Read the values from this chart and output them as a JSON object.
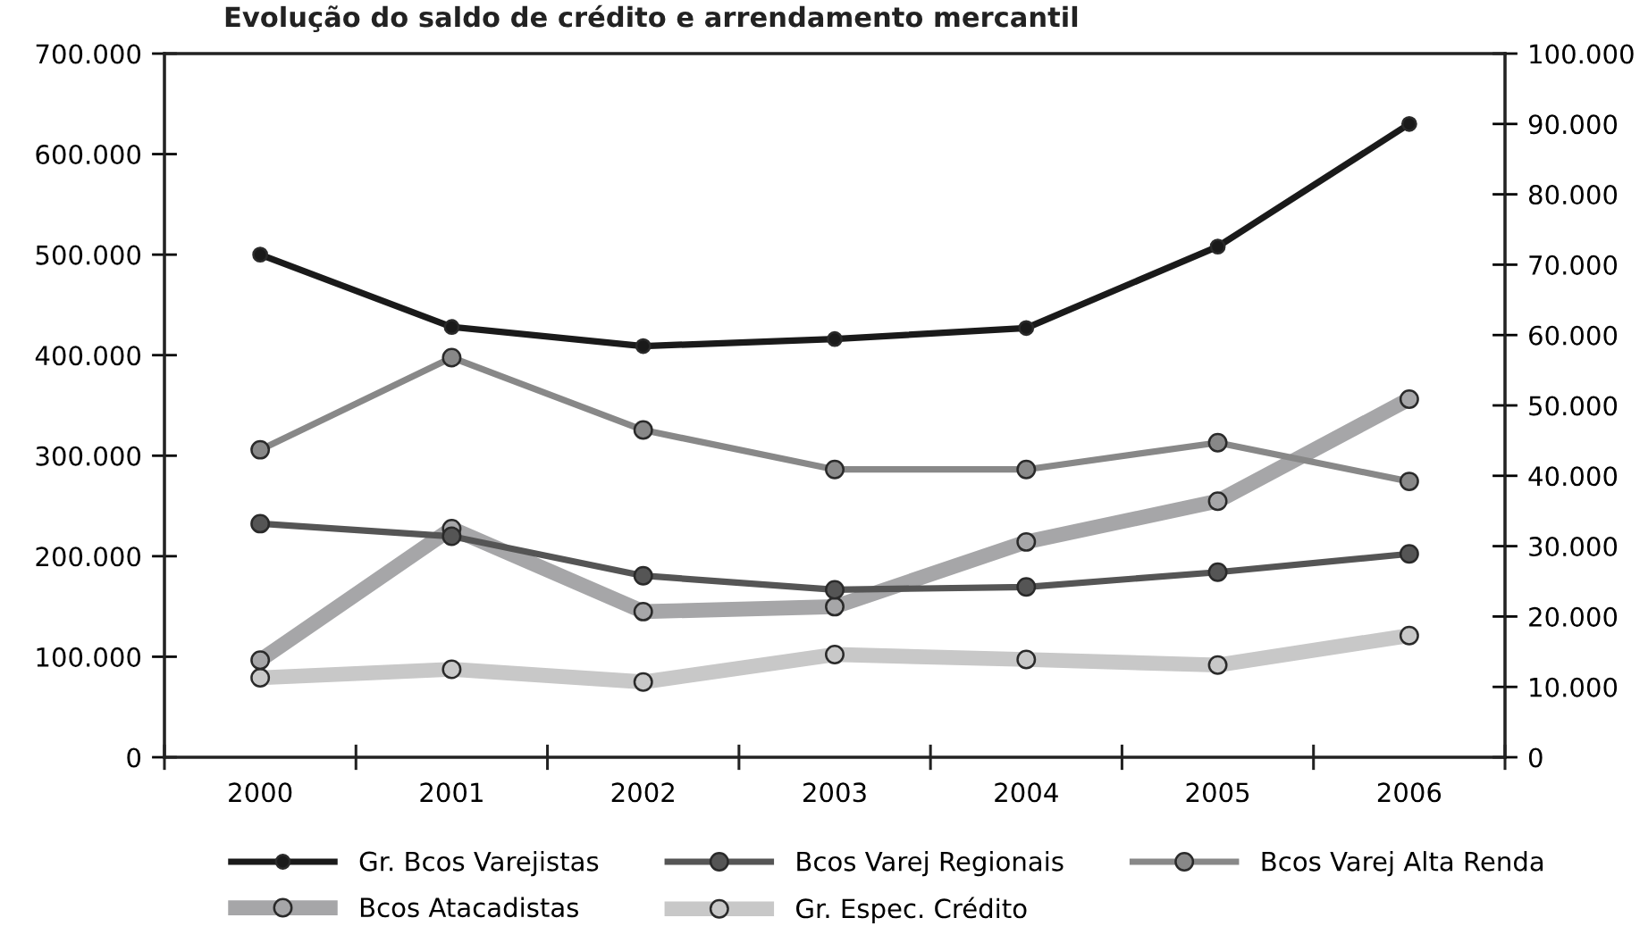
{
  "chart_data": {
    "type": "line",
    "title": "Evolução do saldo de crédito e arrendamento mercantil",
    "categories": [
      "2000",
      "2001",
      "2002",
      "2003",
      "2004",
      "2005",
      "2006"
    ],
    "series": [
      {
        "name": "Gr. Bcos Varejistas",
        "color": "#1a1a1a",
        "values": [
          500000,
          428000,
          409000,
          416000,
          427000,
          508000,
          630000
        ]
      },
      {
        "name": "Bcos Varej Regionais",
        "color": "#555555",
        "axis": "y2",
        "values": [
          33200,
          31400,
          25800,
          23800,
          24200,
          26300,
          28900
        ]
      },
      {
        "name": "Bcos Varej Alta Renda",
        "color": "#888888",
        "axis": "y2",
        "values": [
          43700,
          56800,
          46500,
          40900,
          40900,
          44700,
          39200
        ]
      },
      {
        "name": "Bcos Atacadistas",
        "color": "#a6a6a8",
        "axis": "y2",
        "values": [
          13800,
          32500,
          20700,
          21400,
          30600,
          36400,
          50900
        ]
      },
      {
        "name": "Gr. Espec. Crédito",
        "color": "#c8c8c8",
        "axis": "y2",
        "values": [
          11300,
          12500,
          10700,
          14600,
          13900,
          13100,
          17300
        ]
      }
    ],
    "ylim": [
      0,
      700000
    ],
    "yticks": [
      {
        "value": 0,
        "label": "0"
      },
      {
        "value": 100000,
        "label": "100.000"
      },
      {
        "value": 200000,
        "label": "200.000"
      },
      {
        "value": 300000,
        "label": "300.000"
      },
      {
        "value": 400000,
        "label": "400.000"
      },
      {
        "value": 500000,
        "label": "500.000"
      },
      {
        "value": 600000,
        "label": "600.000"
      },
      {
        "value": 700000,
        "label": "700.000"
      }
    ],
    "y2lim": [
      0,
      100000
    ],
    "y2ticks": [
      {
        "value": 0,
        "label": "0"
      },
      {
        "value": 10000,
        "label": "10.000"
      },
      {
        "value": 20000,
        "label": "20.000"
      },
      {
        "value": 30000,
        "label": "30.000"
      },
      {
        "value": 40000,
        "label": "40.000"
      },
      {
        "value": 50000,
        "label": "50.000"
      },
      {
        "value": 60000,
        "label": "60.000"
      },
      {
        "value": 70000,
        "label": "70.000"
      },
      {
        "value": 80000,
        "label": "80.000"
      },
      {
        "value": 90000,
        "label": "90.000"
      },
      {
        "value": 100000,
        "label": "100.000"
      }
    ],
    "grid": false,
    "legend": "bottom",
    "marker": "circle",
    "line_style": "solid"
  }
}
